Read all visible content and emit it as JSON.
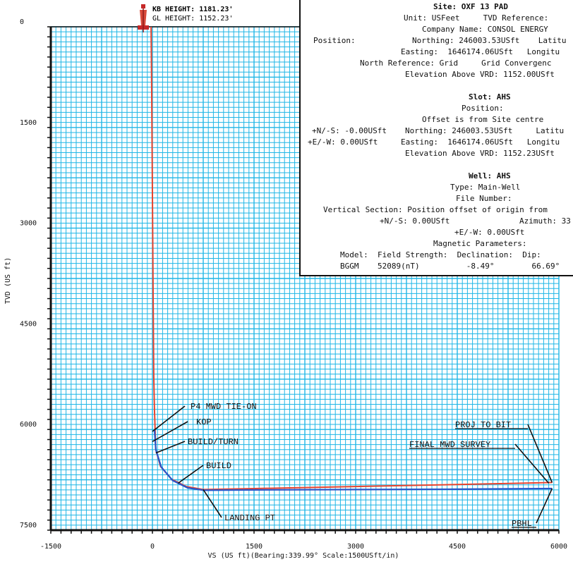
{
  "header": {
    "kb_height": "KB HEIGHT: 1181.23'",
    "gl_height": "GL HEIGHT: 1152.23'"
  },
  "info": {
    "site_title": "Site: OXF 13 PAD",
    "unit_line": "Unit: USFeet     TVD Reference:",
    "company_line": "Company Name: CONSOL ENERGY",
    "position_label": "Position:",
    "site_northing": "Northing: 246003.53USft    Latitu",
    "site_easting": "Easting:  1646174.06USft   Longitu",
    "north_ref": "North Reference: Grid     Grid Convergenc",
    "site_elev": "Elevation Above VRD: 1152.00USft",
    "slot_title": "Slot: AHS",
    "slot_position": "Position:",
    "slot_offset_note": "Offset is from Site centre",
    "slot_ns": "+N/-S: -0.00USft",
    "slot_northing": "Northing: 246003.53USft     Latitu",
    "slot_ew": "+E/-W: 0.00USft",
    "slot_easting": "Easting:  1646174.06USft   Longitu",
    "slot_elev": "Elevation Above VRD: 1152.23USft",
    "well_title": "Well: AHS",
    "well_type": "Type: Main-Well",
    "file_number": "File Number:",
    "vs_line": "Vertical Section: Position offset of origin from",
    "vs_ns": "+N/-S: 0.00USft",
    "vs_azimuth": "Azimuth: 33",
    "vs_ew": "+E/-W: 0.00USft",
    "mag_title": "Magnetic Parameters:",
    "mag_headers": "Model:  Field Strength:  Declination:  Dip:",
    "mag_values": "BGGM    52089(nT)          -8.49°        66.69°"
  },
  "chart_data": {
    "type": "line",
    "xlabel": "VS (US ft)(Bearing:339.99° Scale:1500USft/in)",
    "ylabel": "TVD (US ft)",
    "xlim": [
      -1500,
      6000
    ],
    "ylim": [
      7500,
      0
    ],
    "x_ticks": [
      "-1500",
      "0",
      "1500",
      "3000",
      "4500",
      "6000"
    ],
    "y_ticks": [
      "0",
      "1500",
      "3000",
      "4500",
      "6000",
      "7500"
    ],
    "grid": true,
    "series": [
      {
        "color": "#e8432e",
        "points": [
          [
            -20,
            0
          ],
          [
            -10,
            1000
          ],
          [
            0,
            2500
          ],
          [
            10,
            4000
          ],
          [
            20,
            5200
          ],
          [
            30,
            5700
          ],
          [
            40,
            6000
          ],
          [
            50,
            6300
          ],
          [
            120,
            6550
          ],
          [
            280,
            6740
          ],
          [
            500,
            6850
          ],
          [
            750,
            6895
          ],
          [
            1500,
            6880
          ],
          [
            3000,
            6850
          ],
          [
            4500,
            6820
          ],
          [
            5900,
            6790
          ]
        ]
      },
      {
        "color": "#2b55c8",
        "points": [
          [
            30,
            6000
          ],
          [
            50,
            6300
          ],
          [
            130,
            6560
          ],
          [
            300,
            6760
          ],
          [
            520,
            6870
          ],
          [
            760,
            6905
          ],
          [
            1500,
            6900
          ],
          [
            3000,
            6895
          ],
          [
            4500,
            6890
          ],
          [
            5900,
            6880
          ]
        ]
      }
    ],
    "annotations": [
      {
        "label": "P4 MWD TIE-ON",
        "x": 0,
        "y": 6030
      },
      {
        "label": "KOP",
        "x": 0,
        "y": 6180
      },
      {
        "label": "BUILD/TURN",
        "x": 50,
        "y": 6350
      },
      {
        "label": "BUILD",
        "x": 380,
        "y": 6800
      },
      {
        "label": "LANDING PT",
        "x": 750,
        "y": 6895
      },
      {
        "label": "PROJ TO BIT",
        "x": 5900,
        "y": 6790
      },
      {
        "label": "FINAL MWD SURVEY",
        "x": 5850,
        "y": 6800
      },
      {
        "label": "PBHL",
        "x": 5900,
        "y": 6880
      }
    ],
    "colors": {
      "grid": "#1fb6e6",
      "axis": "#111111"
    }
  }
}
